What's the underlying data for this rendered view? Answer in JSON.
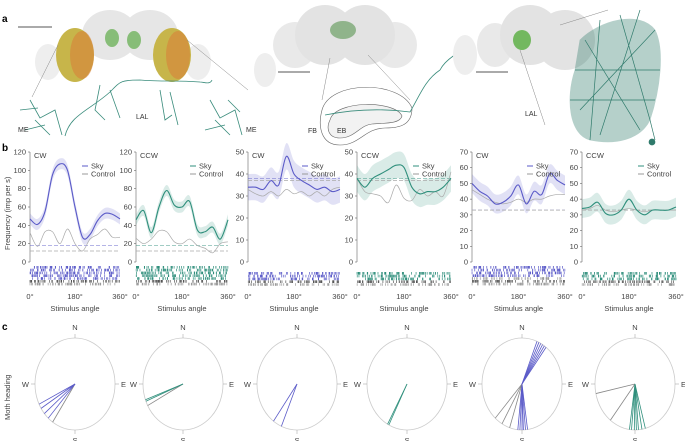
{
  "panel_labels": {
    "a": "a",
    "b": "b",
    "c": "c"
  },
  "panel_a": {
    "labels": {
      "me_left": "ME",
      "lal_1": "LAL",
      "me_right": "ME",
      "fb": "FB",
      "eb": "EB",
      "lal_2": "LAL"
    }
  },
  "colors": {
    "sky_cw": "#5a5ac8",
    "sky_ccw": "#2f8f7c",
    "control": "#9a9a9a",
    "neuron": "#2f8070"
  },
  "panel_b": {
    "ylabel": "Frequency (imp per s)",
    "xlabel": "Stimulus angle",
    "legend_sky": "Sky",
    "legend_control": "Control"
  },
  "panel_c": {
    "ylabel": "Moth heading",
    "compass": {
      "n": "N",
      "e": "E",
      "s": "S",
      "w": "W"
    }
  },
  "chart_data": [
    {
      "type": "line",
      "title": "CW",
      "color": "sky_cw",
      "x": [
        0,
        30,
        60,
        90,
        120,
        150,
        180,
        210,
        240,
        270,
        300,
        330,
        360
      ],
      "xticks": [
        "0°",
        "180°",
        "360°"
      ],
      "ylim": [
        0,
        120
      ],
      "ystep": 20,
      "series": [
        {
          "name": "Sky",
          "values": [
            47,
            41,
            55,
            95,
            107,
            100,
            60,
            27,
            30,
            45,
            53,
            52,
            47
          ]
        },
        {
          "name": "Control",
          "values": [
            32,
            17,
            33,
            33,
            20,
            36,
            20,
            12,
            25,
            30,
            36,
            27,
            27
          ]
        }
      ],
      "baseline_sky": 18,
      "baseline_control": 12
    },
    {
      "type": "line",
      "title": "CCW",
      "color": "sky_ccw",
      "x": [
        0,
        30,
        60,
        90,
        120,
        150,
        180,
        210,
        240,
        270,
        300,
        330,
        360
      ],
      "xticks": [
        "0°",
        "180°",
        "360°"
      ],
      "ylim": [
        0,
        120
      ],
      "ystep": 20,
      "series": [
        {
          "name": "Sky",
          "values": [
            46,
            56,
            32,
            60,
            78,
            62,
            60,
            66,
            35,
            33,
            38,
            25,
            46
          ]
        },
        {
          "name": "Control",
          "values": [
            26,
            20,
            25,
            34,
            33,
            22,
            20,
            25,
            18,
            15,
            10,
            20,
            22
          ]
        }
      ],
      "baseline_sky": 18,
      "baseline_control": 12
    },
    {
      "type": "line",
      "title": "CW",
      "color": "sky_cw",
      "x": [
        0,
        30,
        60,
        90,
        120,
        150,
        180,
        210,
        240,
        270,
        300,
        330,
        360
      ],
      "xticks": [
        "0°",
        "180°",
        "360°"
      ],
      "ylim": [
        0,
        50
      ],
      "ystep": 10,
      "series": [
        {
          "name": "Sky",
          "values": [
            34,
            34,
            33,
            37,
            35,
            48,
            40,
            37,
            35,
            33,
            34,
            32,
            33
          ]
        },
        {
          "name": "Control",
          "values": [
            33,
            31,
            30,
            32,
            30,
            33,
            31,
            32,
            30,
            32,
            30,
            33,
            34
          ]
        }
      ],
      "baseline_sky": 38,
      "baseline_control": 37
    },
    {
      "type": "line",
      "title": "CCW",
      "color": "sky_ccw",
      "x": [
        0,
        30,
        60,
        90,
        120,
        150,
        180,
        210,
        240,
        270,
        300,
        330,
        360
      ],
      "xticks": [
        "0°",
        "180°",
        "360°"
      ],
      "ylim": [
        0,
        50
      ],
      "ystep": 10,
      "series": [
        {
          "name": "Sky",
          "values": [
            38,
            34,
            38,
            40,
            42,
            44,
            43,
            34,
            31,
            32,
            32,
            34,
            38
          ]
        },
        {
          "name": "Control",
          "values": [
            38,
            32,
            31,
            30,
            27,
            35,
            29,
            28,
            33,
            30,
            32,
            30,
            41
          ]
        }
      ],
      "baseline_sky": 38,
      "baseline_control": 37
    },
    {
      "type": "line",
      "title": "CW",
      "color": "sky_cw",
      "x": [
        0,
        30,
        60,
        90,
        120,
        150,
        180,
        210,
        240,
        270,
        300,
        330,
        360
      ],
      "xticks": [
        "0°",
        "180°",
        "360°"
      ],
      "ylim": [
        0,
        70
      ],
      "ystep": 10,
      "series": [
        {
          "name": "Sky",
          "values": [
            50,
            45,
            42,
            37,
            38,
            42,
            49,
            37,
            45,
            43,
            56,
            52,
            49
          ]
        },
        {
          "name": "Control",
          "values": [
            46,
            43,
            40,
            38,
            37,
            38,
            40,
            38,
            40,
            40,
            42,
            43,
            43
          ]
        }
      ],
      "baseline_sky": 33,
      "baseline_control": 33
    },
    {
      "type": "line",
      "title": "CCW",
      "color": "sky_ccw",
      "x": [
        0,
        30,
        60,
        90,
        120,
        150,
        180,
        210,
        240,
        270,
        300,
        330,
        360
      ],
      "xticks": [
        "0°",
        "180°",
        "360°"
      ],
      "ylim": [
        0,
        70
      ],
      "ystep": 10,
      "series": [
        {
          "name": "Sky",
          "values": [
            34,
            35,
            38,
            31,
            30,
            33,
            40,
            33,
            30,
            33,
            33,
            33,
            35
          ]
        },
        {
          "name": "Control",
          "values": [
            33,
            34,
            36,
            33,
            32,
            33,
            34,
            33,
            32,
            33,
            33,
            33,
            33
          ]
        }
      ],
      "baseline_sky": 33,
      "baseline_control": 33
    }
  ],
  "headings": [
    {
      "color": "sky_cw",
      "sky": [
        244,
        238,
        230,
        222
      ],
      "control": [
        214
      ]
    },
    {
      "color": "sky_ccw",
      "sky": [
        250,
        248
      ],
      "control": [
        242
      ]
    },
    {
      "color": "sky_cw",
      "sky": [
        216,
        203
      ],
      "control": []
    },
    {
      "color": "sky_ccw",
      "sky": [
        209,
        207
      ],
      "control": []
    },
    {
      "color": "sky_cw",
      "sky": [
        22,
        25,
        28,
        31,
        34,
        37,
        172,
        175,
        178,
        180,
        183,
        186
      ],
      "control": [
        222,
        210,
        198
      ]
    },
    {
      "color": "sky_ccw",
      "sky": [
        165,
        170,
        175,
        178,
        181,
        185,
        188
      ],
      "control": [
        258,
        218
      ]
    }
  ]
}
